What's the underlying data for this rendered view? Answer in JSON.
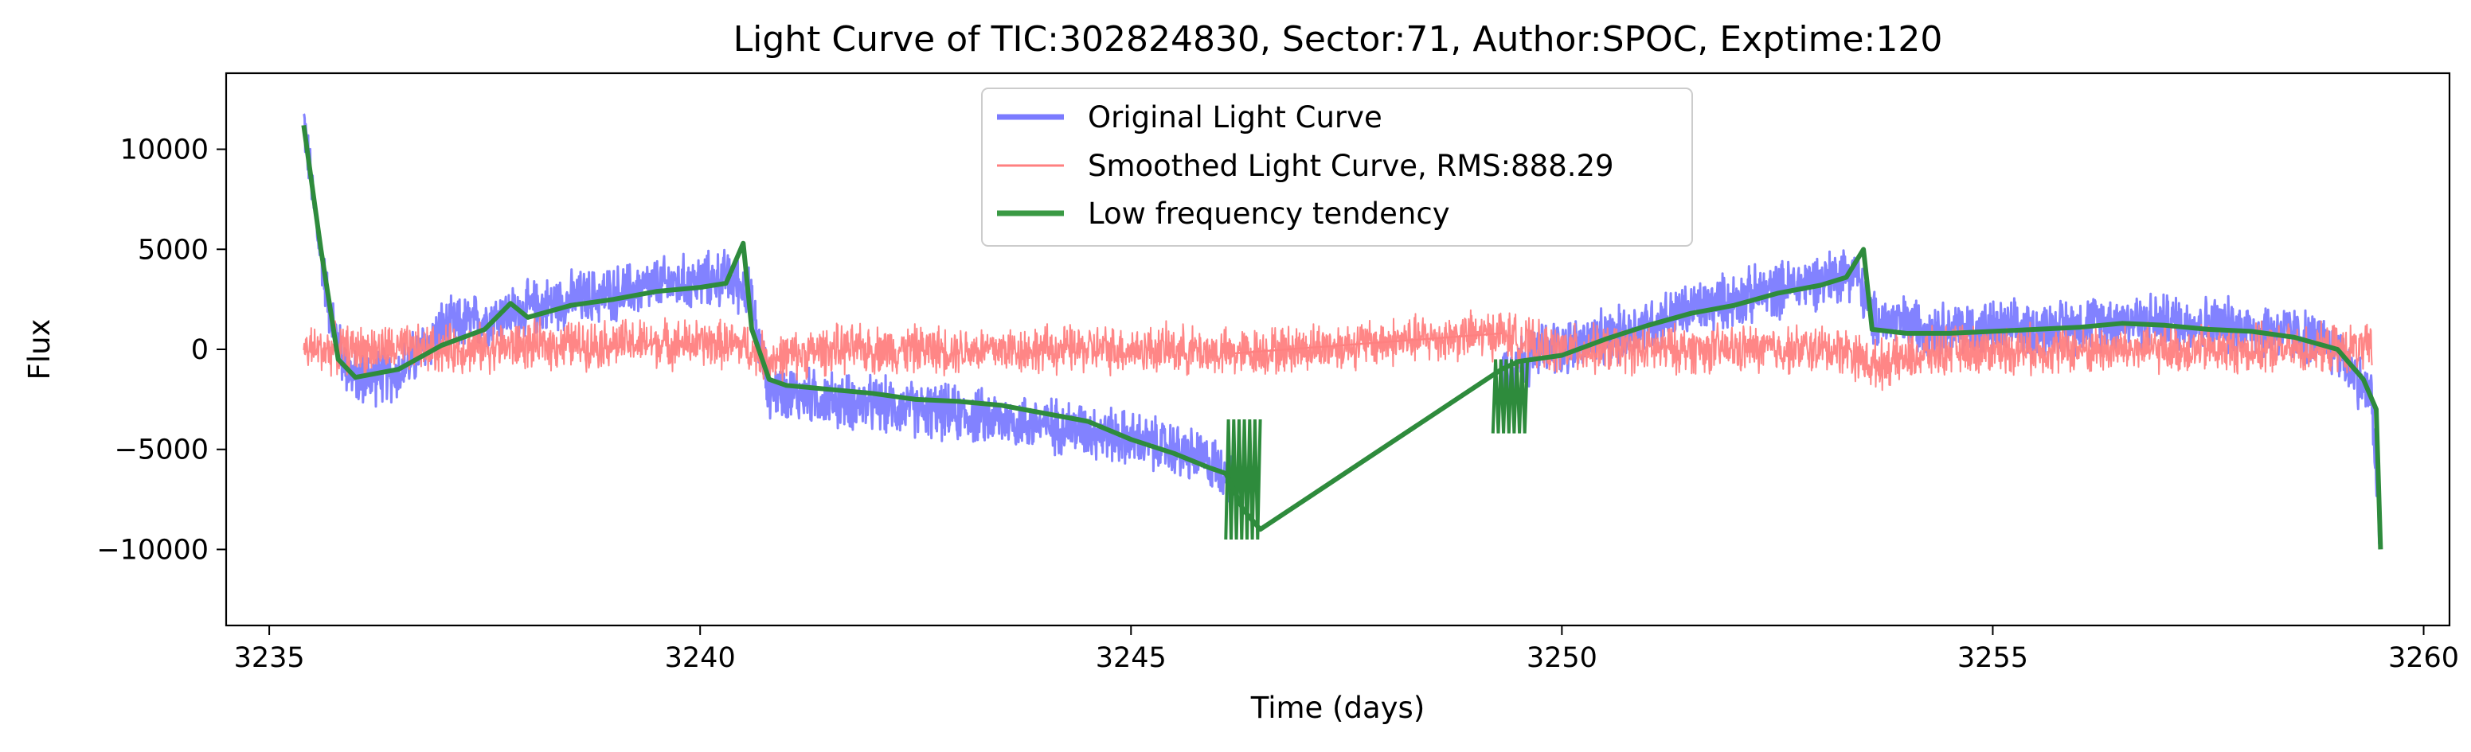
{
  "chart_data": {
    "type": "line",
    "title": "Light Curve of TIC:302824830, Sector:71, Author:SPOC, Exptime:120",
    "xlabel": "Time (days)",
    "ylabel": "Flux",
    "xlim": [
      3234.5,
      3260.3
    ],
    "ylim": [
      -13800,
      13800
    ],
    "x_ticks": [
      3235,
      3240,
      3245,
      3250,
      3255,
      3260
    ],
    "x_tick_labels": [
      "3235",
      "3240",
      "3245",
      "3250",
      "3255",
      "3260"
    ],
    "y_ticks": [
      10000,
      5000,
      0,
      -5000,
      -10000
    ],
    "y_tick_labels": [
      "10000",
      "5000",
      "0",
      "−5000",
      "−10000"
    ],
    "grid": false,
    "legend_position": "top-center",
    "series": [
      {
        "name": "Original Light Curve",
        "color": "#7b7bff",
        "style": "noisy",
        "noise_amplitude": 1500,
        "x": [
          3235.4,
          3235.55,
          3235.7,
          3235.85,
          3236.0,
          3236.5,
          3237.0,
          3237.5,
          3238.0,
          3238.5,
          3239.0,
          3239.5,
          3240.0,
          3240.3,
          3240.55,
          3240.8,
          3241.5,
          3242.5,
          3243.5,
          3244.5,
          3245.5,
          3246.0,
          3246.3,
          null,
          3249.3,
          3249.8,
          3250.5,
          3251.5,
          3252.5,
          3253.0,
          3253.4,
          3253.6,
          3254.5,
          3255.5,
          3256.5,
          3257.5,
          3258.5,
          3259.0,
          3259.4,
          3259.5
        ],
        "y": [
          11500,
          6000,
          2000,
          -500,
          -1500,
          -1200,
          1000,
          1500,
          2000,
          2500,
          2800,
          3200,
          3400,
          3600,
          3000,
          -2000,
          -2500,
          -3000,
          -3500,
          -4000,
          -5000,
          -5800,
          -7000,
          null,
          -1000,
          0,
          500,
          2000,
          3000,
          3500,
          4000,
          1500,
          1000,
          1000,
          1500,
          1300,
          800,
          0,
          -2500,
          -10000
        ]
      },
      {
        "name": "Smoothed Light Curve, RMS:888.29",
        "color": "#ff8080",
        "style": "noisy",
        "noise_amplitude": 1300,
        "x": [
          3235.4,
          3236.0,
          3237.0,
          3238.0,
          3239.0,
          3240.0,
          3240.5,
          3240.8,
          3241.5,
          3242.5,
          3243.5,
          3244.5,
          3245.5,
          3246.2,
          3249.3,
          3249.8,
          3250.5,
          3251.5,
          3252.5,
          3253.3,
          3253.6,
          3254.5,
          3255.5,
          3256.5,
          3257.5,
          3258.5,
          3259.4
        ],
        "y": [
          0,
          0,
          0,
          200,
          300,
          300,
          200,
          -500,
          0,
          0,
          0,
          0,
          0,
          -200,
          800,
          0,
          0,
          0,
          0,
          0,
          -800,
          0,
          0,
          0,
          0,
          0,
          0
        ]
      },
      {
        "name": "Low frequency tendency",
        "color": "#2e8b3c",
        "style": "line",
        "x": [
          3235.4,
          3235.6,
          3235.8,
          3236.0,
          3236.5,
          3237.0,
          3237.5,
          3237.8,
          3238.0,
          3238.5,
          3239.0,
          3239.5,
          3240.0,
          3240.3,
          3240.5,
          3240.6,
          3240.8,
          3241.0,
          3241.5,
          3242.0,
          3242.5,
          3243.0,
          3243.5,
          3244.0,
          3244.5,
          3245.0,
          3245.5,
          3245.9,
          3246.1,
          3246.3,
          3246.5,
          3249.3,
          3249.5,
          3250.0,
          3250.5,
          3251.0,
          3251.5,
          3252.0,
          3252.5,
          3253.0,
          3253.3,
          3253.5,
          3253.6,
          3254.0,
          3254.5,
          3255.0,
          3255.5,
          3256.0,
          3256.5,
          3257.0,
          3257.5,
          3258.0,
          3258.5,
          3259.0,
          3259.3,
          3259.45,
          3259.5
        ],
        "y": [
          11200,
          5000,
          -500,
          -1400,
          -1000,
          200,
          1000,
          2300,
          1600,
          2200,
          2500,
          2900,
          3100,
          3300,
          5300,
          1000,
          -1500,
          -1800,
          -2000,
          -2200,
          -2500,
          -2600,
          -2800,
          -3200,
          -3600,
          -4500,
          -5200,
          -5900,
          -6200,
          -8000,
          -9000,
          -1000,
          -600,
          -300,
          500,
          1200,
          1800,
          2200,
          2800,
          3200,
          3600,
          5000,
          1000,
          800,
          800,
          900,
          1000,
          1100,
          1300,
          1200,
          1000,
          900,
          600,
          0,
          -1500,
          -3000,
          -10000
        ]
      }
    ]
  }
}
